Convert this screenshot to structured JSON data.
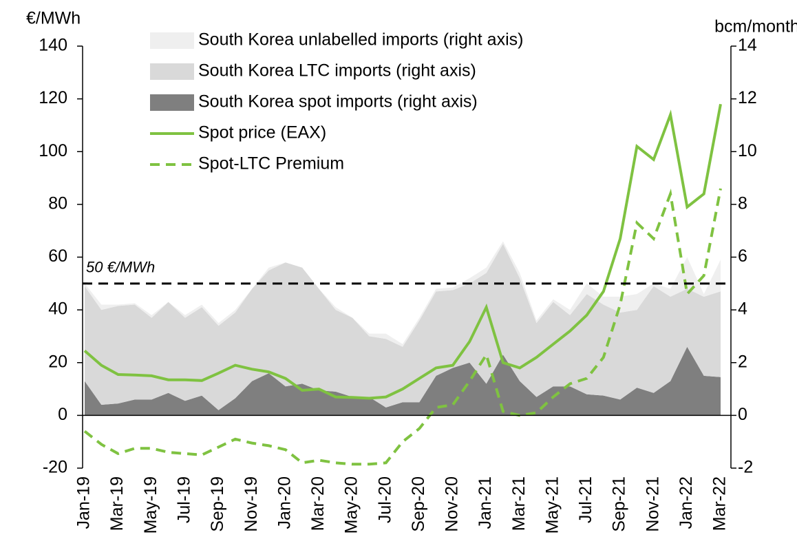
{
  "chart_data": {
    "type": "combo",
    "y_label": "€/MWh",
    "y2_label": "bcm/month",
    "categories": [
      "Jan-19",
      null,
      "Mar-19",
      null,
      "May-19",
      null,
      "Jul-19",
      null,
      "Sep-19",
      null,
      "Nov-19",
      null,
      "Jan-20",
      null,
      "Mar-20",
      null,
      "May-20",
      null,
      "Jul-20",
      null,
      "Sep-20",
      null,
      "Nov-20",
      null,
      "Jan-21",
      null,
      "Mar-21",
      null,
      "May-21",
      null,
      "Jul-21",
      null,
      "Sep-21",
      null,
      "Nov-21",
      null,
      "Jan-22",
      null,
      "Mar-22"
    ],
    "ylim": [
      -20,
      140
    ],
    "yticks": [
      -20,
      0,
      20,
      40,
      60,
      80,
      100,
      120,
      140
    ],
    "y2lim": [
      -2,
      14
    ],
    "y2ticks": [
      -2,
      0,
      2,
      4,
      6,
      8,
      10,
      12,
      14
    ],
    "hline": {
      "value": 50,
      "label": "50 €/MWh"
    },
    "series": [
      {
        "name": "South Korea spot imports (right axis)",
        "type": "area",
        "axis": "y2",
        "color": "#7f7f7f",
        "values": [
          1.3,
          0.4,
          0.45,
          0.6,
          0.6,
          0.85,
          0.55,
          0.75,
          0.2,
          0.65,
          1.3,
          1.6,
          1.1,
          1.2,
          0.95,
          0.9,
          0.7,
          0.7,
          0.3,
          0.5,
          0.5,
          1.5,
          1.8,
          2.0,
          1.2,
          2.3,
          1.3,
          0.7,
          1.1,
          1.1,
          0.8,
          0.75,
          0.6,
          1.05,
          0.85,
          1.3,
          2.6,
          1.5,
          1.45
        ]
      },
      {
        "name": "South Korea LTC imports (right axis)",
        "type": "area",
        "axis": "y2",
        "color": "#d9d9d9",
        "values": [
          3.6,
          3.6,
          3.7,
          3.6,
          3.1,
          3.45,
          3.15,
          3.35,
          3.2,
          3.25,
          3.5,
          3.9,
          4.7,
          4.4,
          3.85,
          3.1,
          3.0,
          2.3,
          2.6,
          2.1,
          3.1,
          3.2,
          2.95,
          3.0,
          4.2,
          4.2,
          3.9,
          2.8,
          3.2,
          2.7,
          3.8,
          3.45,
          3.3,
          2.95,
          4.05,
          3.2,
          2.2,
          3.0,
          3.25
        ]
      },
      {
        "name": "South Korea unlabelled imports (right axis)",
        "type": "area",
        "axis": "y2",
        "color": "#efefef",
        "values": [
          0.1,
          0.2,
          0.05,
          0.05,
          0.1,
          0,
          0.1,
          0.1,
          0.1,
          0.1,
          0,
          0.1,
          0,
          0,
          0,
          0.1,
          0,
          0.1,
          0.2,
          0.1,
          0.1,
          0.1,
          0.1,
          0.2,
          0.2,
          0.1,
          0.2,
          0.1,
          0.1,
          0.2,
          0.4,
          0.3,
          0.6,
          0.6,
          0.1,
          0.3,
          1.2,
          0.1,
          1.2
        ]
      },
      {
        "name": "Spot price (EAX)",
        "type": "line",
        "axis": "y",
        "color": "#7fc241",
        "dash": false,
        "values": [
          24.5,
          19,
          15.5,
          15.3,
          15,
          13.5,
          13.5,
          13.2,
          16,
          19,
          17.5,
          16.5,
          14,
          9.5,
          10,
          7,
          6.8,
          6.5,
          7,
          10,
          14,
          18,
          19,
          28,
          41,
          20,
          18,
          22,
          27,
          32,
          38,
          47,
          67,
          102,
          97,
          114,
          79,
          84,
          118
        ]
      },
      {
        "name": "Spot-LTC Premium",
        "type": "line",
        "axis": "y",
        "color": "#7fc241",
        "dash": true,
        "values": [
          -6,
          -11,
          -14.5,
          -12.5,
          -12.5,
          -14,
          -14.5,
          -15,
          -12,
          -9,
          -10.5,
          -11.5,
          -13,
          -18,
          -17,
          -18,
          -18.5,
          -18.5,
          -18,
          -10,
          -5,
          3,
          4,
          13,
          23,
          1.5,
          0,
          1,
          7,
          12,
          14,
          22,
          42,
          73,
          67,
          84,
          46,
          53,
          86
        ]
      }
    ],
    "legend_order": [
      2,
      1,
      0,
      3,
      4
    ]
  }
}
